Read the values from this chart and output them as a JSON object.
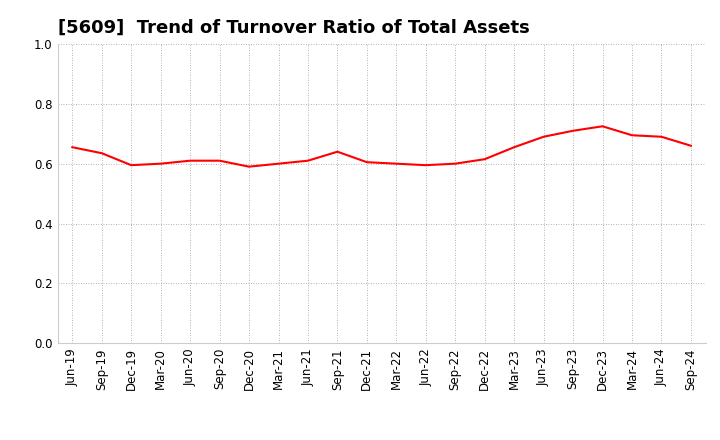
{
  "title": "[5609]  Trend of Turnover Ratio of Total Assets",
  "x_labels": [
    "Jun-19",
    "Sep-19",
    "Dec-19",
    "Mar-20",
    "Jun-20",
    "Sep-20",
    "Dec-20",
    "Mar-21",
    "Jun-21",
    "Sep-21",
    "Dec-21",
    "Mar-22",
    "Jun-22",
    "Sep-22",
    "Dec-22",
    "Mar-23",
    "Jun-23",
    "Sep-23",
    "Dec-23",
    "Mar-24",
    "Jun-24",
    "Sep-24"
  ],
  "values": [
    0.655,
    0.635,
    0.595,
    0.6,
    0.61,
    0.61,
    0.59,
    0.6,
    0.61,
    0.64,
    0.605,
    0.6,
    0.595,
    0.6,
    0.615,
    0.655,
    0.69,
    0.71,
    0.725,
    0.695,
    0.69,
    0.66
  ],
  "line_color": "#ff0000",
  "line_width": 1.5,
  "ylim": [
    0.0,
    1.0
  ],
  "yticks": [
    0.0,
    0.2,
    0.4,
    0.6,
    0.8,
    1.0
  ],
  "background_color": "#ffffff",
  "grid_color": "#999999",
  "title_fontsize": 13,
  "tick_fontsize": 8.5,
  "title_font_family": "sans-serif"
}
